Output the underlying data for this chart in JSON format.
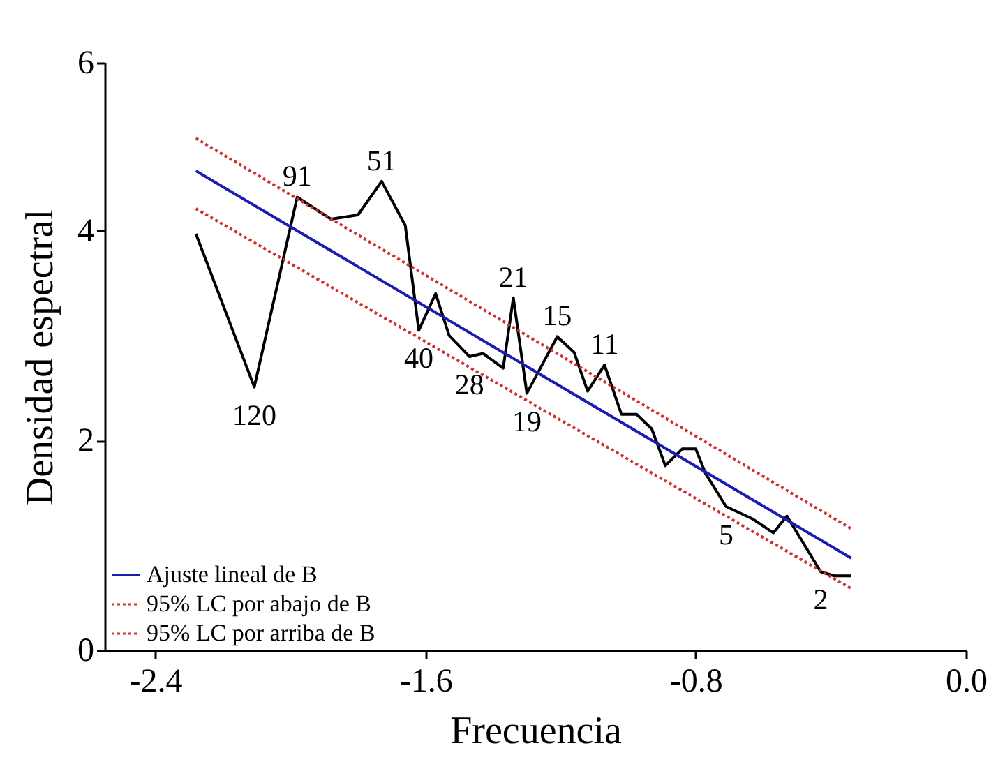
{
  "chart_data": {
    "type": "line",
    "xlabel": "Frecuencia",
    "ylabel": "Densidad espectral",
    "xlim": [
      -2.55,
      0
    ],
    "ylim": [
      0,
      5.6
    ],
    "xticks": [
      -2.4,
      -1.6,
      -0.8,
      {
        "value": 0,
        "label": "0.0"
      }
    ],
    "yticks": [
      0,
      2,
      4,
      {
        "value": 5.6,
        "label": "6"
      }
    ],
    "grid": false,
    "legend": "bottom left",
    "marker": "none",
    "series": [
      {
        "color": "#000000",
        "line_style": "solid",
        "x": [
          -2.28,
          -2.107,
          -1.98,
          -1.88,
          -1.8,
          -1.73,
          -1.66,
          -1.62,
          -1.57,
          -1.53,
          -1.47,
          -1.43,
          -1.37,
          -1.34,
          -1.3,
          -1.21,
          -1.16,
          -1.12,
          -1.07,
          -1.02,
          -0.975,
          -0.93,
          -0.89,
          -0.84,
          -0.8,
          -0.77,
          -0.71,
          -0.63,
          -0.57,
          -0.53,
          -0.43,
          -0.39,
          -0.34
        ],
        "values": [
          3.97,
          2.51,
          4.32,
          4.11,
          4.15,
          4.47,
          4.05,
          3.05,
          3.4,
          3.0,
          2.8,
          2.83,
          2.69,
          3.36,
          2.45,
          2.99,
          2.84,
          2.47,
          2.72,
          2.25,
          2.25,
          2.11,
          1.76,
          1.92,
          1.92,
          1.68,
          1.37,
          1.25,
          1.12,
          1.28,
          0.75,
          0.71,
          0.71
        ]
      },
      {
        "name": "Ajuste lineal de B",
        "color": "#1c1cb0",
        "line_style": "solid",
        "x": [
          -2.28,
          -0.34
        ],
        "values": [
          4.57,
          0.88
        ]
      },
      {
        "name": "95% LC por abajo de B",
        "color": "#d03030",
        "line_style": "dotted",
        "x": [
          -2.28,
          -0.34
        ],
        "values": [
          4.21,
          0.59
        ]
      },
      {
        "name": "95% LC por arriba de B",
        "color": "#d03030",
        "line_style": "dotted",
        "x": [
          -2.28,
          -0.34
        ],
        "values": [
          4.88,
          1.16
        ]
      }
    ],
    "annotations": [
      {
        "text": "120",
        "x": -2.107,
        "y": 2.51
      },
      {
        "text": "91",
        "x": -1.98,
        "y": 4.32
      },
      {
        "text": "51",
        "x": -1.73,
        "y": 4.47
      },
      {
        "text": "40",
        "x": -1.62,
        "y": 3.05
      },
      {
        "text": "28",
        "x": -1.47,
        "y": 2.8
      },
      {
        "text": "21",
        "x": -1.34,
        "y": 3.36
      },
      {
        "text": "19",
        "x": -1.3,
        "y": 2.45
      },
      {
        "text": "15",
        "x": -1.21,
        "y": 2.99
      },
      {
        "text": "11",
        "x": -1.07,
        "y": 2.72
      },
      {
        "text": "5",
        "x": -0.71,
        "y": 1.37
      },
      {
        "text": "2",
        "x": -0.43,
        "y": 0.75
      }
    ]
  }
}
